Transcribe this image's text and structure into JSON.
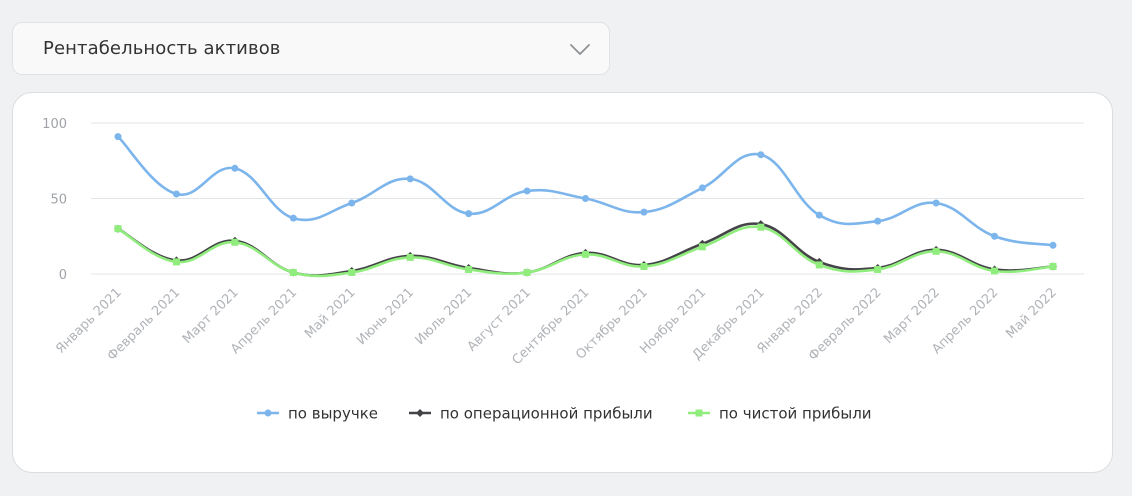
{
  "selector": {
    "label": "Рентабельность активов",
    "chevron_icon": "chevron-down-icon"
  },
  "chart_data": {
    "type": "line",
    "categories": [
      "Январь 2021",
      "Февраль 2021",
      "Март 2021",
      "Апрель 2021",
      "Май 2021",
      "Июнь 2021",
      "Июль 2021",
      "Август 2021",
      "Сентябрь 2021",
      "Октябрь 2021",
      "Ноябрь 2021",
      "Декабрь 2021",
      "Январь 2022",
      "Февраль 2022",
      "Март 2022",
      "Апрель 2022",
      "Май 2022"
    ],
    "ylim": [
      0,
      100
    ],
    "yticks": [
      0,
      50,
      100
    ],
    "grid": true,
    "legend_position": "bottom",
    "series": [
      {
        "name": "по выручке",
        "color": "#7cb5ec",
        "marker": "circle",
        "values": [
          91,
          53,
          70,
          37,
          47,
          63,
          40,
          55,
          50,
          41,
          57,
          79,
          39,
          35,
          47,
          25,
          19
        ]
      },
      {
        "name": "по операционной прибыли",
        "color": "#434348",
        "marker": "diamond",
        "values": [
          30,
          9,
          22,
          1,
          2,
          12,
          4,
          1,
          14,
          6,
          20,
          33,
          8,
          4,
          16,
          3,
          5
        ]
      },
      {
        "name": "по чистой прибыли",
        "color": "#90ed7d",
        "marker": "square",
        "values": [
          30,
          8,
          21,
          1,
          1,
          11,
          3,
          1,
          13,
          5,
          18,
          31,
          6,
          3,
          15,
          2,
          5
        ]
      }
    ]
  }
}
